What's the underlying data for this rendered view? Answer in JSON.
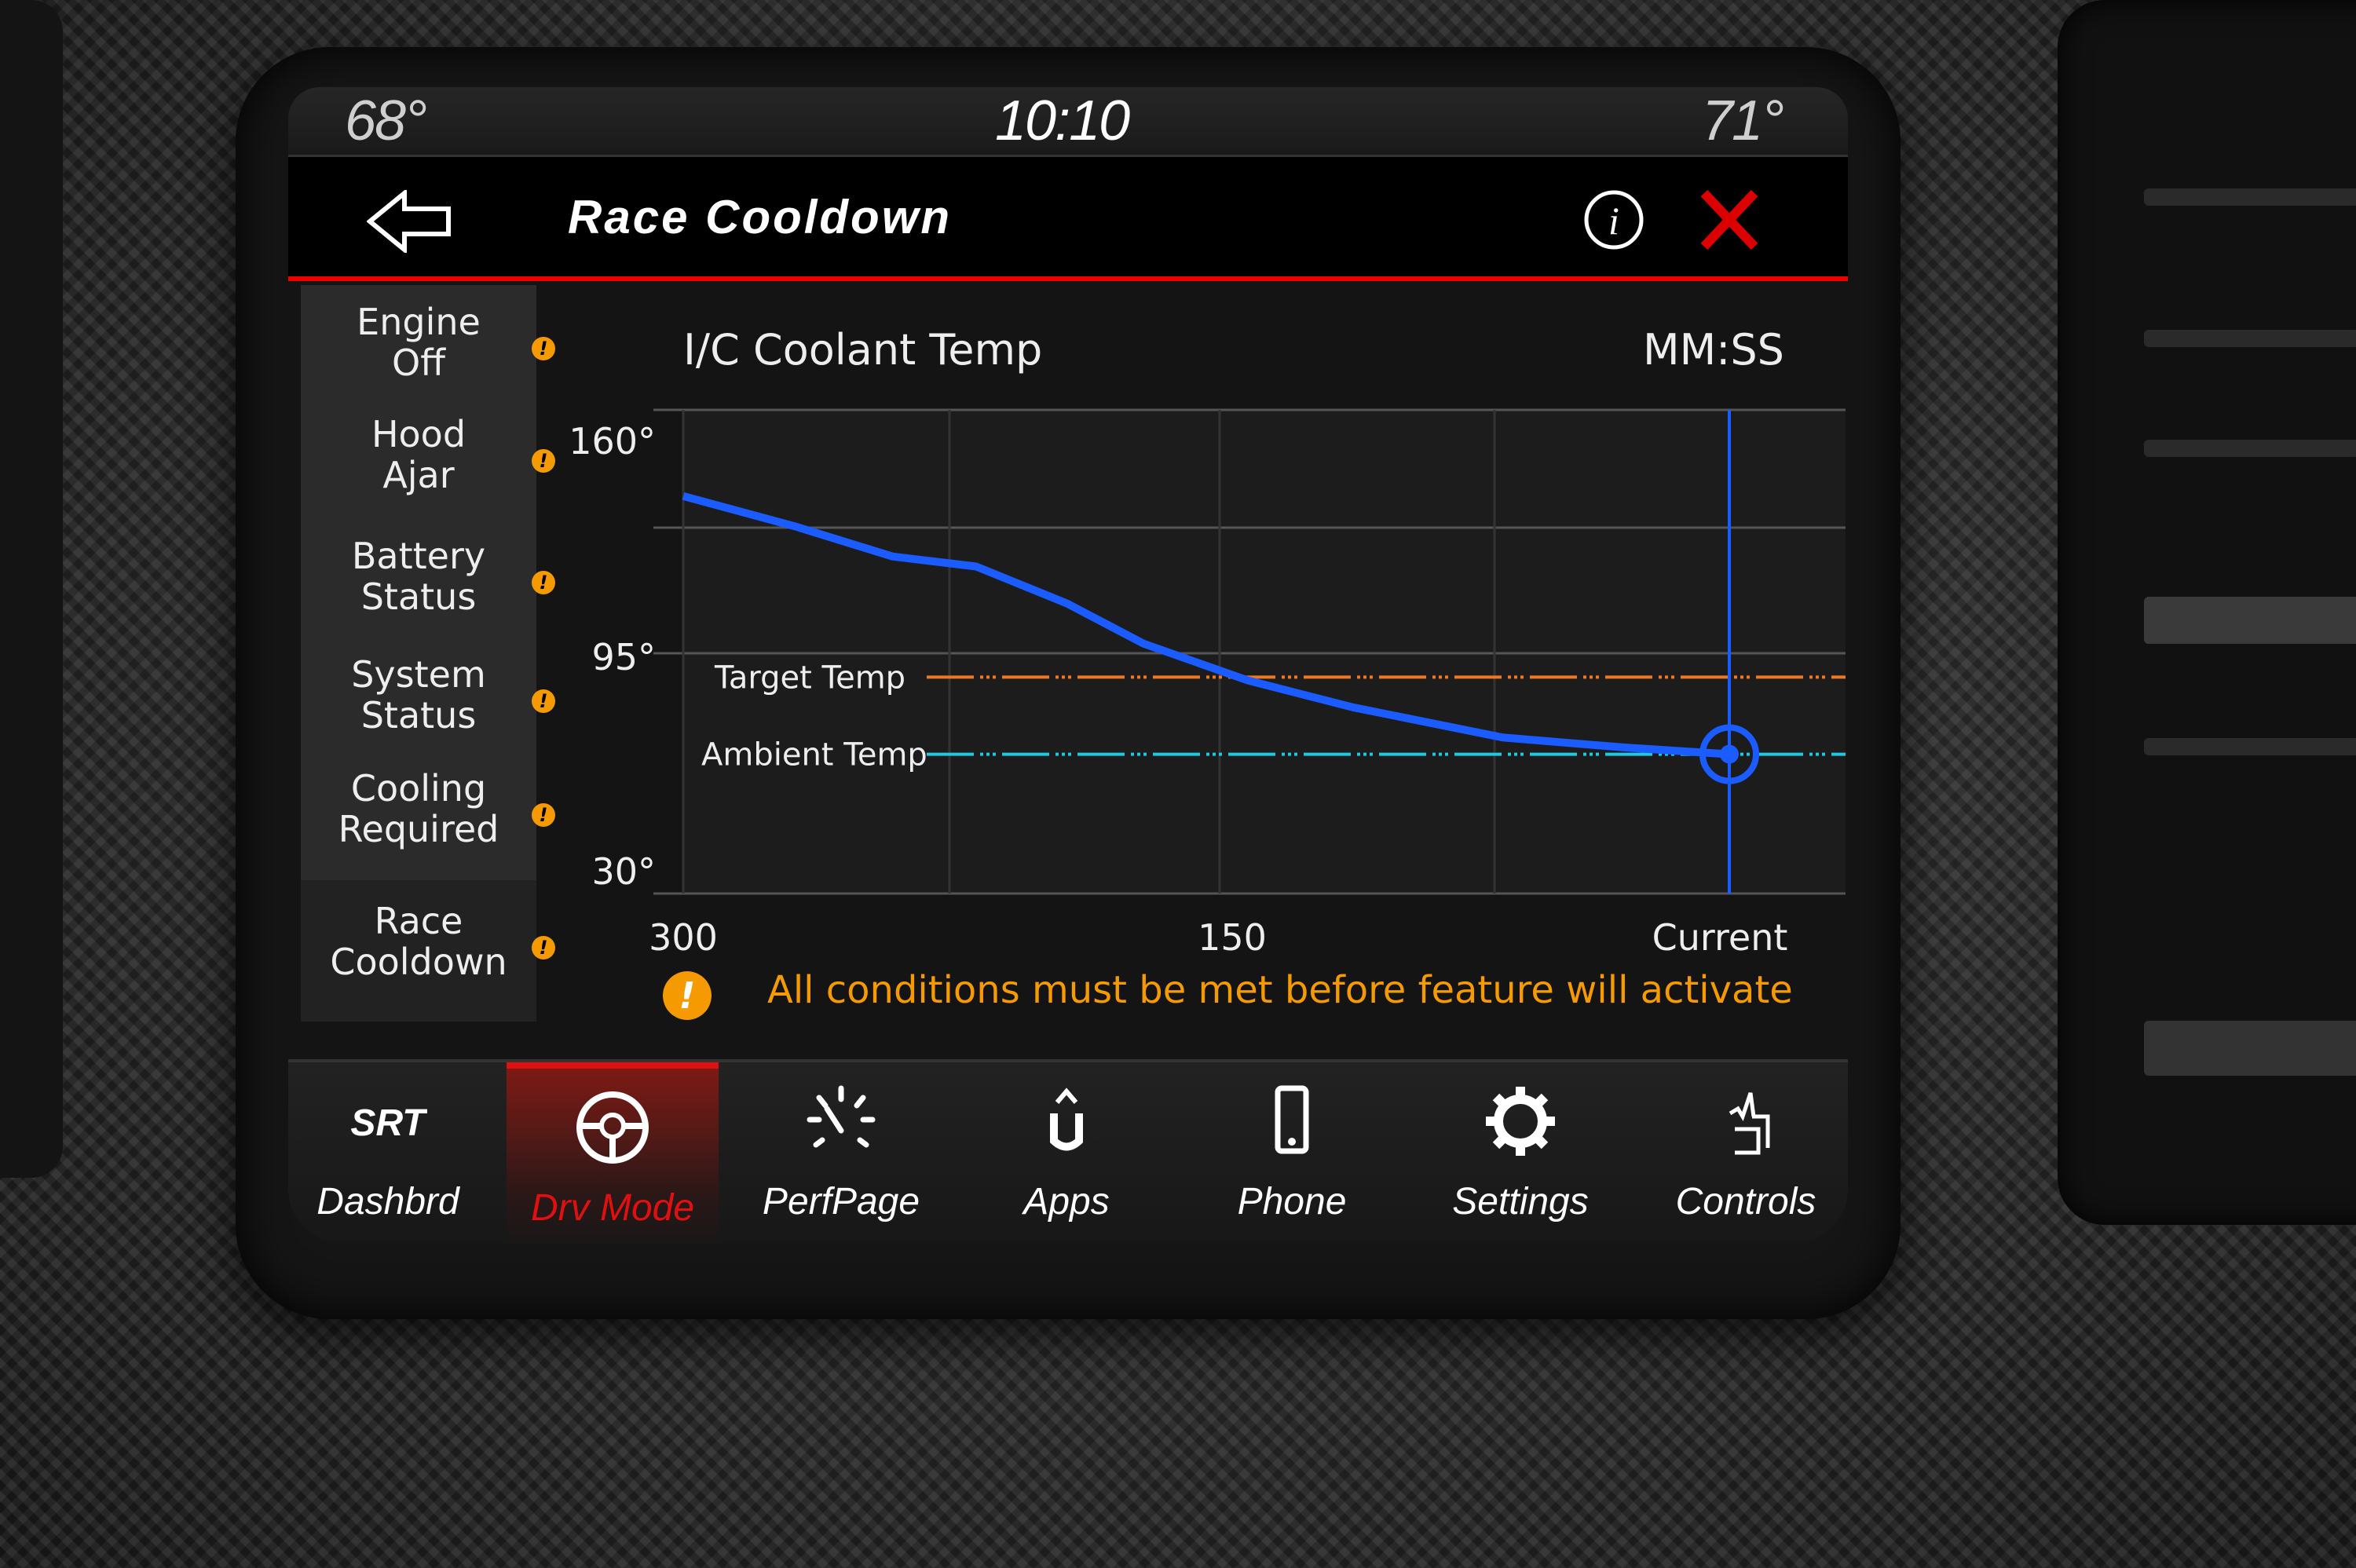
{
  "status_bar": {
    "outside_temp_left": "68°",
    "clock": "10:10",
    "outside_temp_right": "71°"
  },
  "header": {
    "title": "Race Cooldown",
    "back_icon": "arrow-left-icon",
    "info_icon": "info-icon",
    "close_icon": "close-x-icon"
  },
  "sidebar": {
    "items": [
      {
        "label": "Engine Off",
        "status": "warning"
      },
      {
        "label": "Hood Ajar",
        "status": "warning"
      },
      {
        "label": "Battery Status",
        "status": "warning"
      },
      {
        "label": "System Status",
        "status": "warning"
      },
      {
        "label": "Cooling Required",
        "status": "warning"
      },
      {
        "label": "Race Cooldown",
        "status": "warning",
        "selected": true
      }
    ],
    "warning_glyph": "!"
  },
  "chart_data": {
    "type": "line",
    "title": "I/C Coolant Temp",
    "xlabel": "MM:SS",
    "x_ticks": [
      "300",
      "150",
      "Current"
    ],
    "y_ticks": [
      "160°",
      "95°",
      "30°"
    ],
    "ylim": [
      30,
      160
    ],
    "xlim": [
      300,
      0
    ],
    "grid": true,
    "series": [
      {
        "x": [
          300,
          268,
          240,
          216,
          190,
          168,
          138,
          108,
          65,
          30,
          0
        ],
        "y": [
          142,
          133,
          124,
          121,
          110,
          98,
          87,
          79,
          70,
          67,
          65
        ],
        "color": "#1a5cff"
      }
    ],
    "reference_lines": [
      {
        "name": "Target Temp",
        "y": 88,
        "color": "#f07820"
      },
      {
        "name": "Ambient Temp",
        "y": 65,
        "color": "#20c8e0"
      }
    ],
    "current_marker": {
      "x": 0,
      "y": 65,
      "color": "#1a5cff"
    }
  },
  "warning_message": {
    "icon": "!",
    "text": "All conditions must be met before feature will activate",
    "color": "#f59a00"
  },
  "nav": {
    "active_color": "#e01010",
    "items": [
      {
        "label": "Dashbrd",
        "icon": "SRT"
      },
      {
        "label": "Drv Mode",
        "icon": "steering-wheel",
        "active": true
      },
      {
        "label": "PerfPage",
        "icon": "gauge"
      },
      {
        "label": "Apps",
        "icon": "uconnect-apps"
      },
      {
        "label": "Phone",
        "icon": "phone"
      },
      {
        "label": "Settings",
        "icon": "gear"
      },
      {
        "label": "Controls",
        "icon": "hand-touch"
      }
    ]
  }
}
